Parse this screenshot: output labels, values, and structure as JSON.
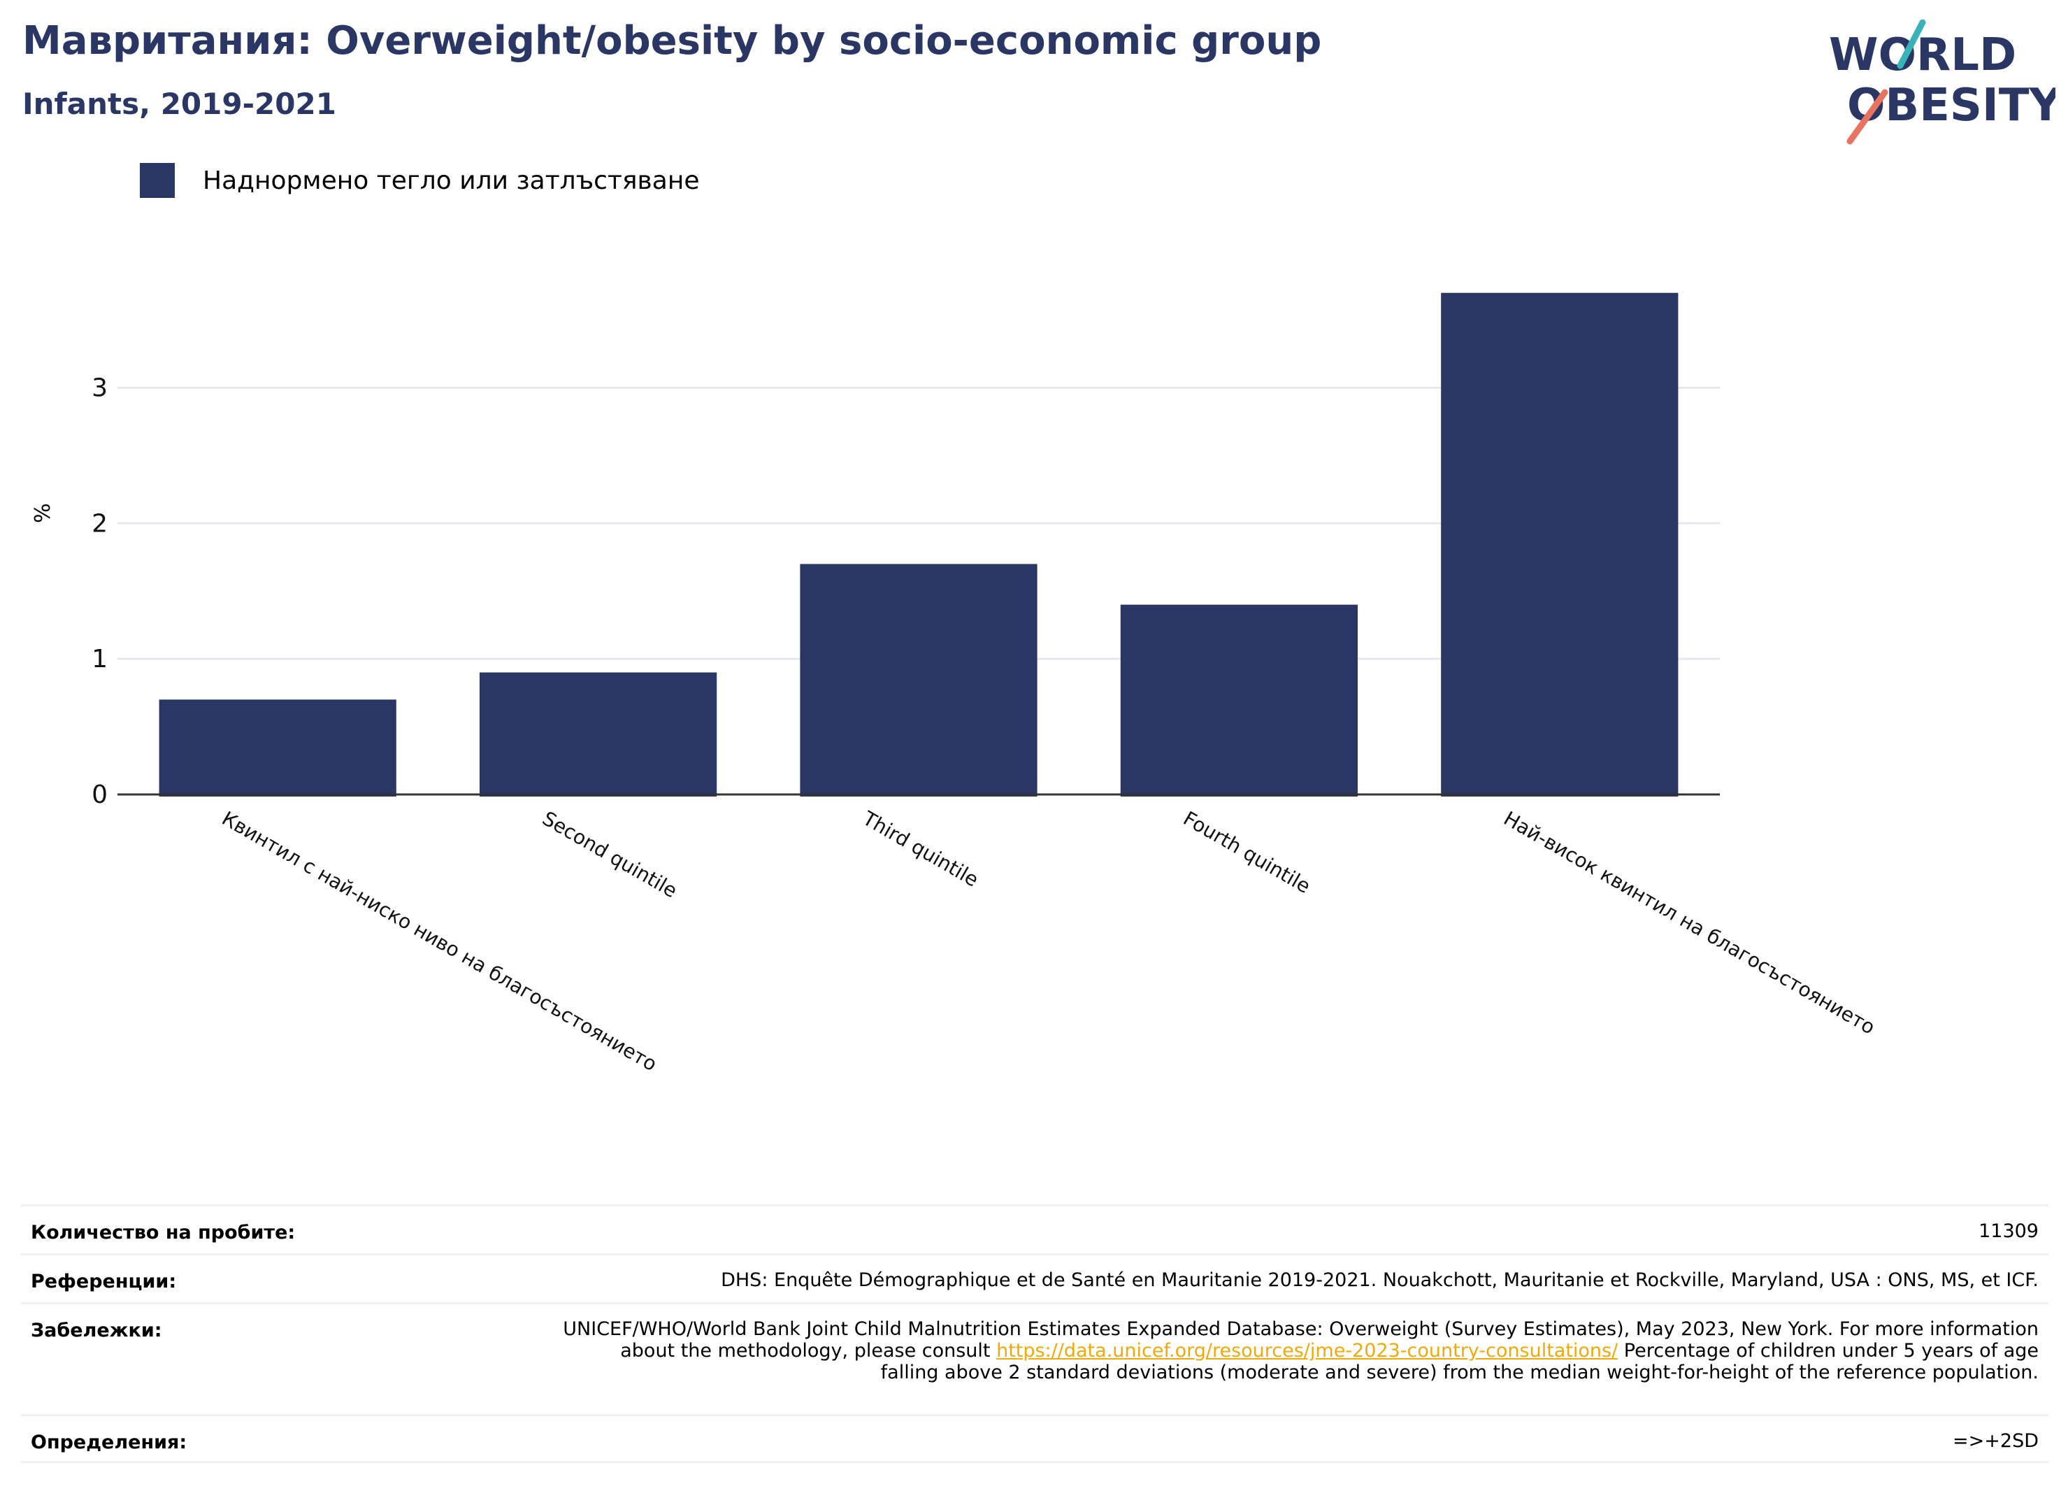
{
  "title": "Мавритания: Overweight/obesity by socio-economic group",
  "subtitle": "Infants, 2019-2021",
  "logo": {
    "line1": "WORLD",
    "line2": "OBESITY"
  },
  "legend": {
    "label": "Наднормено тегло или затлъстяване",
    "color": "#2a3663"
  },
  "colors": {
    "bar": "#2a3663",
    "title": "#2a3663",
    "grid": "#e6e8ee",
    "axis": "#333333",
    "logo_teal": "#38b3b8",
    "logo_coral": "#e8735f",
    "link": "#f0a90a"
  },
  "chart_data": {
    "type": "bar",
    "categories": [
      "Квинтил с най-ниско ниво на благосъстоянието",
      "Second quintile",
      "Third quintile",
      "Fourth quintile",
      "Най-висок квинтил на благосъстоянието"
    ],
    "series": [
      {
        "name": "Наднормено тегло или затлъстяване",
        "values": [
          0.7,
          0.9,
          1.7,
          1.4,
          3.7
        ]
      }
    ],
    "ylabel": "%",
    "yticks": [
      0,
      1,
      2,
      3
    ],
    "ylim": [
      0,
      3.9
    ],
    "grid": true,
    "legend_position": "top-left"
  },
  "footer": {
    "sample_label": "Количество на пробите:",
    "sample_value": "11309",
    "ref_label": "Референции:",
    "ref_value": "DHS: Enquête Démographique et de Santé en Mauritanie 2019-2021. Nouakchott, Mauritanie et Rockville, Maryland, USA : ONS, MS, et ICF.",
    "notes_label": "Забележки:",
    "notes_before": "UNICEF/WHO/World Bank Joint Child Malnutrition Estimates Expanded Database: Overweight (Survey Estimates), May 2023, New York. For more information about the methodology, please consult ",
    "notes_link": "https://data.unicef.org/resources/jme-2023-country-consultations/",
    "notes_after": " Percentage of children under 5 years of age falling above 2 standard deviations (moderate and severe) from the median weight-for-height of the reference population.",
    "def_label": "Определения:",
    "def_value": "=>+2SD"
  }
}
